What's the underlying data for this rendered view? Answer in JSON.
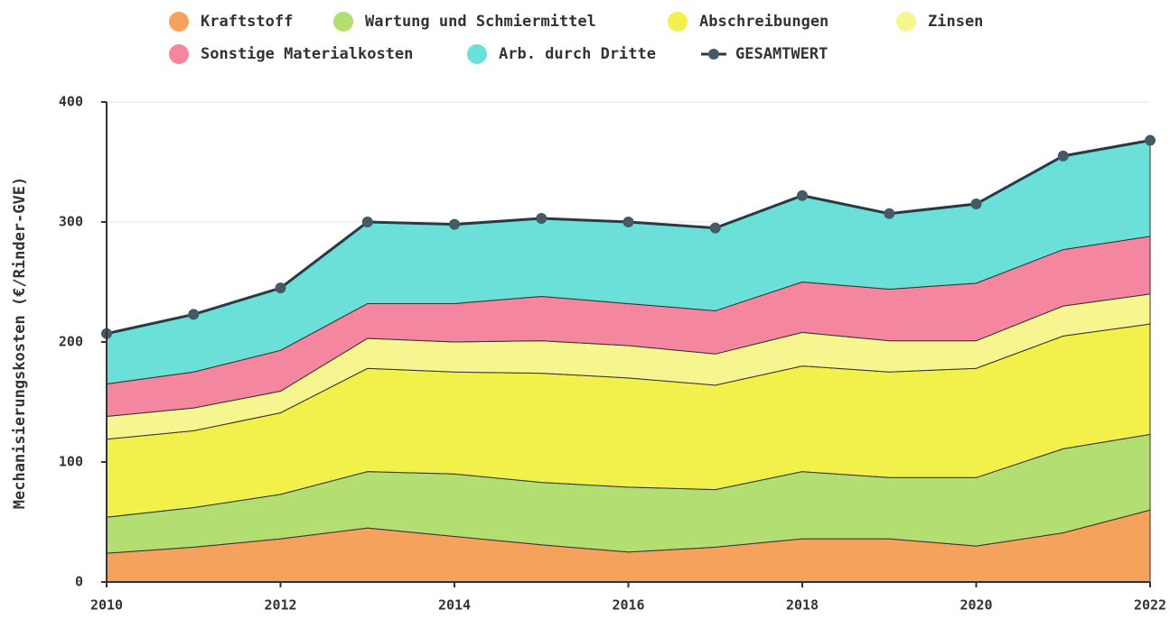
{
  "chart_data": {
    "type": "area",
    "stacked": true,
    "y_label": "Mechanisierungskosten (€/Rinder-GVE)",
    "x": [
      2010,
      2011,
      2012,
      2013,
      2014,
      2015,
      2016,
      2017,
      2018,
      2019,
      2020,
      2021,
      2022
    ],
    "xlim": [
      2010,
      2022
    ],
    "xticks": [
      2010,
      2012,
      2014,
      2016,
      2018,
      2020,
      2022
    ],
    "ylim": [
      0,
      400
    ],
    "yticks": [
      0,
      100,
      200,
      300,
      400
    ],
    "grid": true,
    "series": [
      {
        "name": "Kraftstoff",
        "color": "#f5a25d",
        "values": [
          24,
          29,
          36,
          45,
          38,
          31,
          25,
          29,
          36,
          36,
          30,
          41,
          60
        ]
      },
      {
        "name": "Wartung und Schmiermittel",
        "color": "#b3df72",
        "values": [
          30,
          33,
          37,
          47,
          52,
          52,
          54,
          48,
          56,
          51,
          57,
          70,
          63
        ]
      },
      {
        "name": "Abschreibungen",
        "color": "#f2f04a",
        "values": [
          65,
          64,
          68,
          86,
          85,
          91,
          91,
          87,
          88,
          88,
          91,
          94,
          92
        ]
      },
      {
        "name": "Zinsen",
        "color": "#f7f58f",
        "values": [
          19,
          19,
          18,
          25,
          25,
          27,
          27,
          26,
          28,
          26,
          23,
          25,
          25
        ]
      },
      {
        "name": "Sonstige Materialkosten",
        "color": "#f4869f",
        "values": [
          27,
          30,
          34,
          29,
          32,
          37,
          35,
          36,
          42,
          43,
          48,
          47,
          48
        ]
      },
      {
        "name": "Arb. durch Dritte",
        "color": "#6be0d8",
        "values": [
          42,
          48,
          52,
          68,
          66,
          65,
          68,
          69,
          72,
          63,
          66,
          78,
          80
        ]
      },
      {
        "name": "GESAMTWERT",
        "color": "#2b3a42",
        "kind": "line",
        "values": [
          207,
          223,
          245,
          300,
          298,
          303,
          300,
          295,
          322,
          307,
          315,
          355,
          368
        ]
      }
    ]
  }
}
